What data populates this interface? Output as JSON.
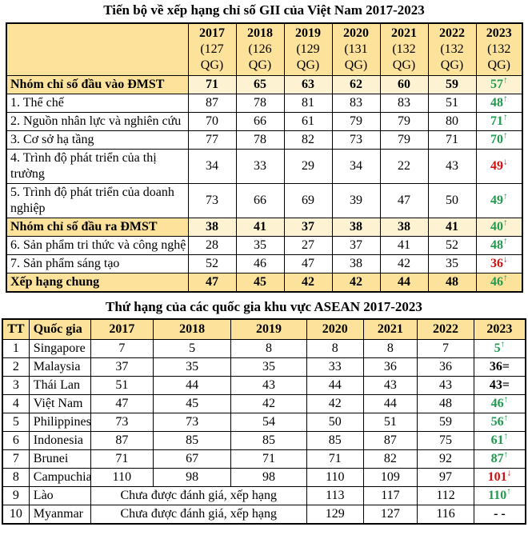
{
  "colors": {
    "header_bg": "#fde29c",
    "group_value_bg": "#fdf3d3",
    "up_green": "#22994f",
    "down_red": "#cc1111",
    "text": "#000000"
  },
  "marks": {
    "up": "↑",
    "down": "↓",
    "equal": "=",
    "none": ""
  },
  "table1": {
    "title": "Tiến bộ về xếp hạng chỉ số GII của Việt Nam 2017-2023",
    "corner_label": "",
    "year_headers": [
      {
        "year": "2017",
        "sub1": "(127",
        "sub2": "QG)"
      },
      {
        "year": "2018",
        "sub1": "(126",
        "sub2": "QG)"
      },
      {
        "year": "2019",
        "sub1": "(129",
        "sub2": "QG)"
      },
      {
        "year": "2020",
        "sub1": "(131",
        "sub2": "QG)"
      },
      {
        "year": "2021",
        "sub1": "(132",
        "sub2": "QG)"
      },
      {
        "year": "2022",
        "sub1": "(132",
        "sub2": "QG)"
      },
      {
        "year": "2023",
        "sub1": "(132",
        "sub2": "QG)"
      }
    ],
    "rows": [
      {
        "label": "Nhóm chỉ số đầu vào ĐMST",
        "type": "group",
        "values": [
          "71",
          "65",
          "63",
          "62",
          "60",
          "59"
        ],
        "final": {
          "value": "57",
          "mark": "up"
        }
      },
      {
        "label": "1. Thể chế",
        "type": "normal",
        "values": [
          "87",
          "78",
          "81",
          "83",
          "83",
          "51"
        ],
        "final": {
          "value": "48",
          "mark": "up"
        }
      },
      {
        "label": "2. Nguồn nhân lực và nghiên cứu",
        "type": "normal",
        "values": [
          "70",
          "66",
          "61",
          "79",
          "79",
          "80"
        ],
        "final": {
          "value": "71",
          "mark": "up"
        }
      },
      {
        "label": "3. Cơ sở hạ tầng",
        "type": "normal",
        "values": [
          "77",
          "78",
          "82",
          "73",
          "79",
          "71"
        ],
        "final": {
          "value": "70",
          "mark": "up"
        }
      },
      {
        "label": "4. Trình độ phát triển của thị trường",
        "type": "normal",
        "values": [
          "34",
          "33",
          "29",
          "34",
          "22",
          "43"
        ],
        "final": {
          "value": "49",
          "mark": "down"
        }
      },
      {
        "label": "5. Trình độ phát triển của doanh nghiệp",
        "type": "normal",
        "values": [
          "73",
          "66",
          "69",
          "39",
          "47",
          "50"
        ],
        "final": {
          "value": "49",
          "mark": "up"
        }
      },
      {
        "label": "Nhóm chỉ số đầu ra ĐMST",
        "type": "group",
        "values": [
          "38",
          "41",
          "37",
          "38",
          "38",
          "41"
        ],
        "final": {
          "value": "40",
          "mark": "up"
        }
      },
      {
        "label": "6. Sản phẩm tri thức và công nghệ",
        "type": "normal",
        "values": [
          "28",
          "35",
          "27",
          "37",
          "41",
          "52"
        ],
        "final": {
          "value": "48",
          "mark": "up"
        }
      },
      {
        "label": "7. Sản phẩm sáng tạo",
        "type": "normal",
        "values": [
          "52",
          "46",
          "47",
          "38",
          "42",
          "35"
        ],
        "final": {
          "value": "36",
          "mark": "down"
        }
      },
      {
        "label": "Xếp hạng chung",
        "type": "total",
        "values": [
          "47",
          "45",
          "42",
          "42",
          "44",
          "48"
        ],
        "final": {
          "value": "46",
          "mark": "up"
        }
      }
    ]
  },
  "table2": {
    "title": "Thứ hạng của các quốc gia khu vực ASEAN 2017-2023",
    "headers": [
      "TT",
      "Quốc gia",
      "2017",
      "2018",
      "2019",
      "2020",
      "2021",
      "2022",
      "2023"
    ],
    "rows": [
      {
        "tt": "1",
        "country": "Singapore",
        "values": [
          "7",
          "5",
          "8",
          "8",
          "8",
          "7"
        ],
        "final": {
          "value": "5",
          "mark": "up"
        }
      },
      {
        "tt": "2",
        "country": "Malaysia",
        "values": [
          "37",
          "35",
          "35",
          "33",
          "36",
          "36"
        ],
        "final": {
          "value": "36",
          "mark": "equal"
        }
      },
      {
        "tt": "3",
        "country": "Thái Lan",
        "values": [
          "51",
          "44",
          "43",
          "44",
          "43",
          "43"
        ],
        "final": {
          "value": "43",
          "mark": "equal"
        }
      },
      {
        "tt": "4",
        "country": "Việt Nam",
        "values": [
          "47",
          "45",
          "42",
          "42",
          "44",
          "48"
        ],
        "final": {
          "value": "46",
          "mark": "up"
        }
      },
      {
        "tt": "5",
        "country": "Philippines",
        "values": [
          "73",
          "73",
          "54",
          "50",
          "51",
          "59"
        ],
        "final": {
          "value": "56",
          "mark": "up"
        }
      },
      {
        "tt": "6",
        "country": "Indonesia",
        "values": [
          "87",
          "85",
          "85",
          "85",
          "87",
          "75"
        ],
        "final": {
          "value": "61",
          "mark": "up"
        }
      },
      {
        "tt": "7",
        "country": "Brunei",
        "values": [
          "71",
          "67",
          "71",
          "71",
          "82",
          "92"
        ],
        "final": {
          "value": "87",
          "mark": "up"
        }
      },
      {
        "tt": "8",
        "country": "Campuchia",
        "values": [
          "110",
          "98",
          "98",
          "110",
          "109",
          "97"
        ],
        "final": {
          "value": "101",
          "mark": "down"
        }
      },
      {
        "tt": "9",
        "country": "Lào",
        "na_text": "Chưa được đánh giá, xếp hạng",
        "values": [
          "113",
          "117",
          "112"
        ],
        "final": {
          "value": "110",
          "mark": "up"
        }
      },
      {
        "tt": "10",
        "country": "Myanmar",
        "na_text": "Chưa được đánh giá, xếp hạng",
        "values": [
          "129",
          "127",
          "116"
        ],
        "final": {
          "value": "- -",
          "mark": "none"
        }
      }
    ]
  }
}
